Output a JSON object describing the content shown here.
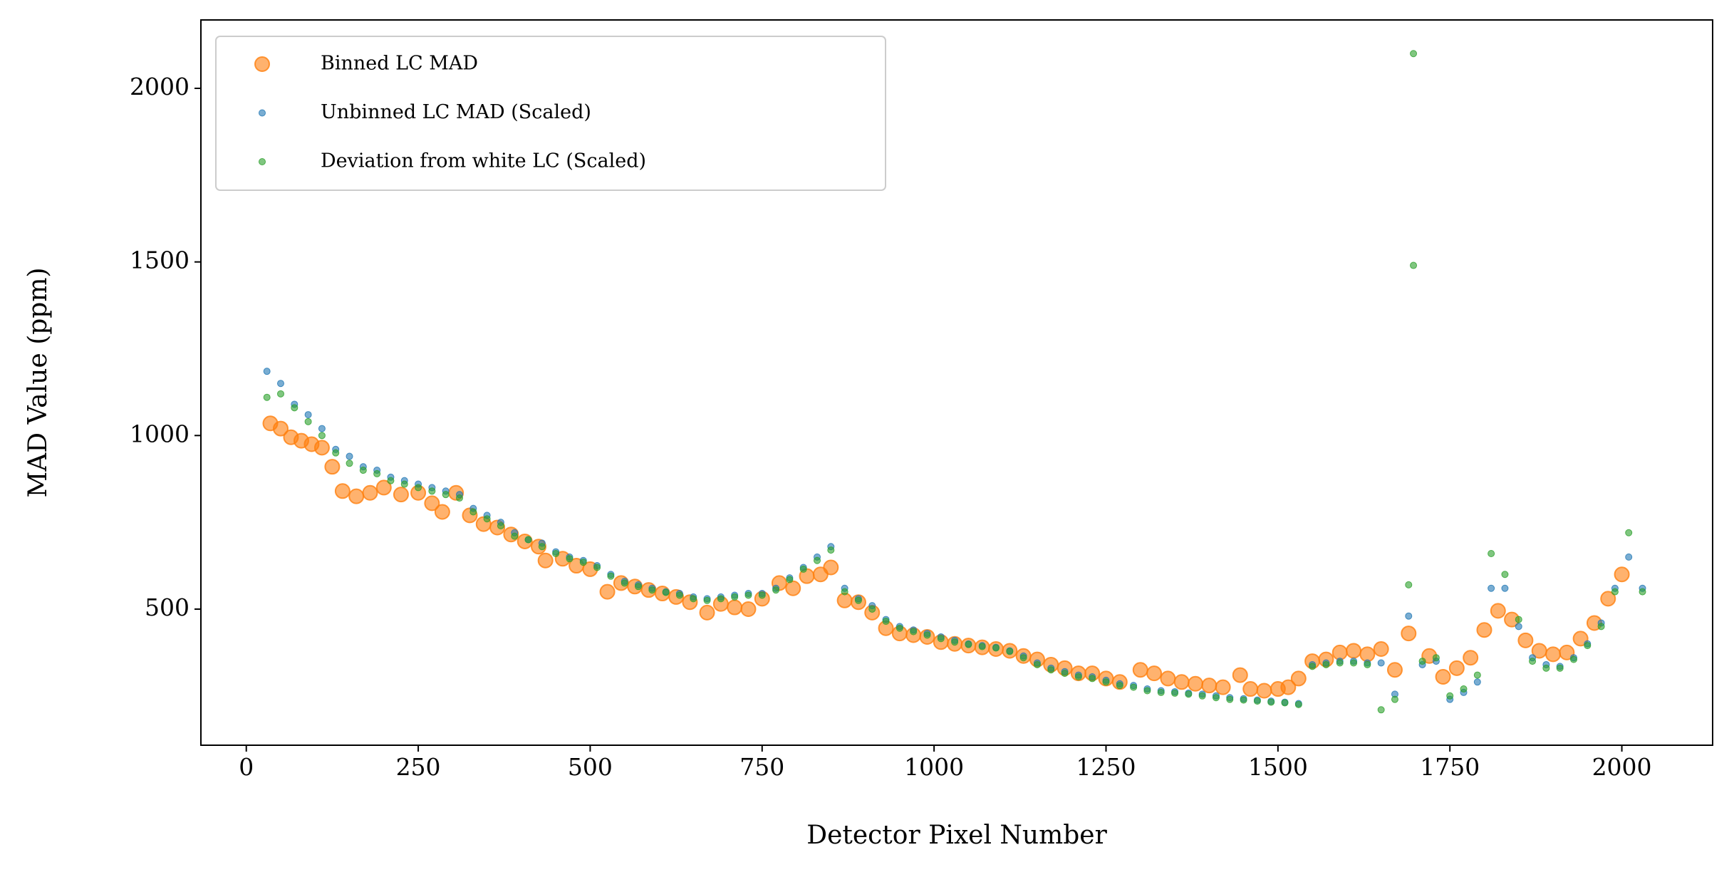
{
  "chart_data": {
    "type": "scatter",
    "xlabel": "Detector Pixel Number",
    "ylabel": "MAD Value (ppm)",
    "xlim": [
      -66,
      2132
    ],
    "ylim": [
      108,
      2197
    ],
    "xticks": [
      0,
      250,
      500,
      750,
      1000,
      1250,
      1500,
      1750,
      2000
    ],
    "yticks": [
      500,
      1000,
      1500,
      2000
    ],
    "grid": false,
    "legend": "upper left",
    "series": [
      {
        "name": "Binned LC MAD",
        "color": "#ff7f0e",
        "x": [
          35,
          50,
          65,
          80,
          95,
          110,
          125,
          140,
          160,
          180,
          200,
          225,
          250,
          270,
          285,
          305,
          325,
          345,
          365,
          385,
          405,
          425,
          435,
          460,
          480,
          500,
          525,
          545,
          565,
          585,
          605,
          625,
          645,
          670,
          690,
          710,
          730,
          750,
          775,
          795,
          815,
          835,
          850,
          870,
          890,
          910,
          930,
          950,
          970,
          990,
          1010,
          1030,
          1050,
          1070,
          1090,
          1110,
          1130,
          1150,
          1170,
          1190,
          1210,
          1230,
          1250,
          1270,
          1300,
          1320,
          1340,
          1360,
          1380,
          1400,
          1420,
          1445,
          1460,
          1480,
          1500,
          1515,
          1530,
          1550,
          1570,
          1590,
          1610,
          1630,
          1650,
          1670,
          1690,
          1720,
          1740,
          1760,
          1780,
          1800,
          1820,
          1840,
          1860,
          1880,
          1900,
          1920,
          1940,
          1960,
          1980,
          2000
        ],
        "values": [
          1035,
          1020,
          995,
          985,
          975,
          965,
          910,
          840,
          825,
          835,
          850,
          830,
          835,
          805,
          780,
          835,
          770,
          745,
          735,
          715,
          695,
          680,
          640,
          645,
          625,
          615,
          550,
          575,
          565,
          555,
          545,
          535,
          520,
          490,
          515,
          505,
          500,
          530,
          575,
          560,
          595,
          600,
          620,
          525,
          520,
          490,
          445,
          430,
          425,
          420,
          405,
          400,
          395,
          390,
          385,
          380,
          365,
          355,
          340,
          330,
          315,
          315,
          300,
          290,
          325,
          315,
          300,
          290,
          285,
          280,
          275,
          310,
          270,
          265,
          270,
          275,
          300,
          350,
          355,
          375,
          380,
          370,
          385,
          325,
          430,
          365,
          305,
          330,
          360,
          440,
          495,
          470,
          410,
          380,
          370,
          375,
          415,
          460,
          530,
          600
        ]
      },
      {
        "name": "Unbinned LC MAD (Scaled)",
        "color": "#1f77b4",
        "x": [
          30,
          50,
          70,
          90,
          110,
          130,
          150,
          170,
          190,
          210,
          230,
          250,
          270,
          290,
          310,
          330,
          350,
          370,
          390,
          410,
          430,
          450,
          470,
          490,
          510,
          530,
          550,
          570,
          590,
          610,
          630,
          650,
          670,
          690,
          710,
          730,
          750,
          770,
          790,
          810,
          830,
          850,
          870,
          890,
          910,
          930,
          950,
          970,
          990,
          1010,
          1030,
          1050,
          1070,
          1090,
          1110,
          1130,
          1150,
          1170,
          1190,
          1210,
          1230,
          1250,
          1270,
          1290,
          1310,
          1330,
          1350,
          1370,
          1390,
          1410,
          1430,
          1450,
          1470,
          1490,
          1510,
          1530,
          1550,
          1570,
          1590,
          1610,
          1630,
          1650,
          1670,
          1690,
          1710,
          1730,
          1750,
          1770,
          1790,
          1810,
          1830,
          1850,
          1870,
          1890,
          1910,
          1930,
          1950,
          1970,
          1990,
          2010,
          2030
        ],
        "values": [
          1185,
          1150,
          1090,
          1060,
          1020,
          960,
          940,
          910,
          900,
          880,
          870,
          860,
          850,
          840,
          830,
          790,
          770,
          750,
          720,
          700,
          690,
          665,
          650,
          640,
          625,
          600,
          580,
          570,
          560,
          550,
          545,
          535,
          530,
          535,
          540,
          545,
          545,
          560,
          590,
          620,
          650,
          680,
          560,
          530,
          510,
          470,
          450,
          440,
          430,
          420,
          410,
          400,
          395,
          390,
          380,
          365,
          345,
          330,
          320,
          310,
          305,
          295,
          285,
          280,
          270,
          265,
          262,
          258,
          255,
          250,
          245,
          242,
          238,
          235,
          232,
          228,
          340,
          345,
          350,
          350,
          345,
          345,
          255,
          480,
          340,
          350,
          240,
          260,
          290,
          560,
          560,
          450,
          360,
          340,
          335,
          360,
          400,
          460,
          560,
          650,
          560
        ]
      },
      {
        "name": "Deviation from white LC (Scaled)",
        "color": "#2ca02c",
        "x": [
          30,
          50,
          70,
          90,
          110,
          130,
          150,
          170,
          190,
          210,
          230,
          250,
          270,
          290,
          310,
          330,
          350,
          370,
          390,
          410,
          430,
          450,
          470,
          490,
          510,
          530,
          550,
          570,
          590,
          610,
          630,
          650,
          670,
          690,
          710,
          730,
          750,
          770,
          790,
          810,
          830,
          850,
          870,
          890,
          910,
          930,
          950,
          970,
          990,
          1010,
          1030,
          1050,
          1070,
          1090,
          1110,
          1130,
          1150,
          1170,
          1190,
          1210,
          1230,
          1250,
          1270,
          1290,
          1310,
          1330,
          1350,
          1370,
          1390,
          1410,
          1430,
          1450,
          1470,
          1490,
          1510,
          1530,
          1550,
          1570,
          1590,
          1610,
          1630,
          1650,
          1670,
          1690,
          1710,
          1730,
          1750,
          1770,
          1790,
          1810,
          1830,
          1850,
          1870,
          1890,
          1910,
          1930,
          1950,
          1970,
          1990,
          2010,
          2030,
          1697,
          1697
        ],
        "values": [
          1110,
          1120,
          1080,
          1040,
          1000,
          950,
          920,
          900,
          890,
          870,
          860,
          850,
          840,
          830,
          820,
          780,
          760,
          740,
          710,
          700,
          680,
          660,
          645,
          635,
          620,
          595,
          575,
          565,
          555,
          548,
          540,
          530,
          525,
          530,
          535,
          540,
          540,
          555,
          585,
          615,
          640,
          670,
          550,
          525,
          500,
          465,
          445,
          435,
          425,
          415,
          405,
          398,
          392,
          388,
          378,
          360,
          340,
          325,
          315,
          305,
          300,
          290,
          280,
          275,
          265,
          260,
          258,
          255,
          250,
          245,
          240,
          238,
          235,
          232,
          230,
          225,
          335,
          340,
          345,
          345,
          340,
          210,
          240,
          570,
          350,
          360,
          250,
          270,
          310,
          660,
          600,
          470,
          350,
          330,
          330,
          355,
          395,
          450,
          550,
          720,
          550,
          2100,
          1490
        ]
      }
    ]
  }
}
